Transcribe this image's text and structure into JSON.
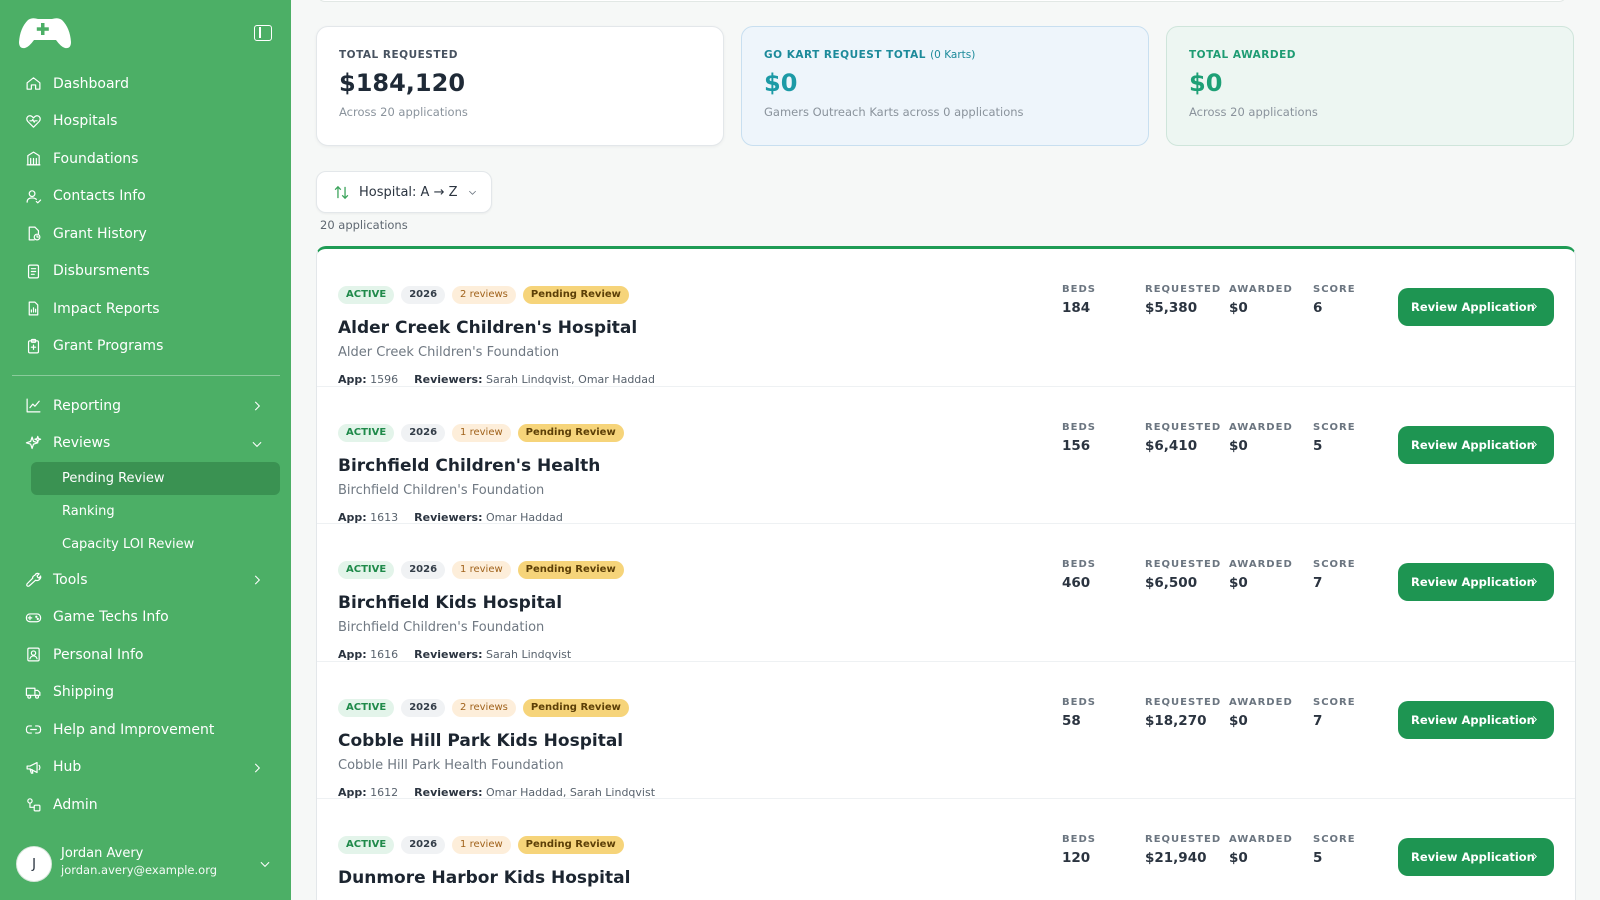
{
  "sidebar": {
    "nav": [
      {
        "label": "Dashboard",
        "icon": "home-icon"
      },
      {
        "label": "Hospitals",
        "icon": "heart-icon"
      },
      {
        "label": "Foundations",
        "icon": "building-icon"
      },
      {
        "label": "Contacts Info",
        "icon": "contact-icon"
      },
      {
        "label": "Grant History",
        "icon": "file-history-icon"
      },
      {
        "label": "Disbursments",
        "icon": "document-icon"
      },
      {
        "label": "Impact Reports",
        "icon": "report-icon"
      },
      {
        "label": "Grant Programs",
        "icon": "clipboard-icon"
      }
    ],
    "reporting_label": "Reporting",
    "reviews_label": "Reviews",
    "reviews_sub": [
      "Pending Review",
      "Ranking",
      "Capacity LOI Review"
    ],
    "tools_label": "Tools",
    "nav2": [
      {
        "label": "Game Techs Info",
        "icon": "gamepad-icon"
      },
      {
        "label": "Personal Info",
        "icon": "user-card-icon"
      },
      {
        "label": "Shipping",
        "icon": "truck-icon"
      },
      {
        "label": "Help and Improvement",
        "icon": "link-icon"
      }
    ],
    "hub_label": "Hub",
    "admin_label": "Admin",
    "user": {
      "initial": "J",
      "name": "Jordan Avery",
      "email": "jordan.avery@example.org"
    }
  },
  "stats": {
    "requested": {
      "label": "TOTAL REQUESTED",
      "value": "$184,120",
      "note": "Across 20 applications"
    },
    "gokart": {
      "label": "GO KART REQUEST TOTAL",
      "sub": "(0 Karts)",
      "value": "$0",
      "note": "Gamers Outreach Karts across 0 applications"
    },
    "awarded": {
      "label": "TOTAL AWARDED",
      "value": "$0",
      "note": "Across 20 applications"
    }
  },
  "sort": {
    "label": "Hospital: A → Z"
  },
  "count_label": "20 applications",
  "columns": {
    "beds": "BEDS",
    "requested": "REQUESTED",
    "awarded": "AWARDED",
    "score": "SCORE"
  },
  "review_button": "Review Application",
  "meta_labels": {
    "app": "App:",
    "reviewers": "Reviewers:"
  },
  "applications": [
    {
      "status": "ACTIVE",
      "year": "2026",
      "reviews": "2 reviews",
      "stage": "Pending Review",
      "name": "Alder Creek Children's Hospital",
      "foundation": "Alder Creek Children's Foundation",
      "app": "1596",
      "reviewers": "Sarah Lindqvist, Omar Haddad",
      "beds": "184",
      "requested": "$5,380",
      "awarded": "$0",
      "score": "6"
    },
    {
      "status": "ACTIVE",
      "year": "2026",
      "reviews": "1 review",
      "stage": "Pending Review",
      "name": "Birchfield Children's Health",
      "foundation": "Birchfield Children's Foundation",
      "app": "1613",
      "reviewers": "Omar Haddad",
      "beds": "156",
      "requested": "$6,410",
      "awarded": "$0",
      "score": "5"
    },
    {
      "status": "ACTIVE",
      "year": "2026",
      "reviews": "1 review",
      "stage": "Pending Review",
      "name": "Birchfield Kids Hospital",
      "foundation": "Birchfield Children's Foundation",
      "app": "1616",
      "reviewers": "Sarah Lindqvist",
      "beds": "460",
      "requested": "$6,500",
      "awarded": "$0",
      "score": "7"
    },
    {
      "status": "ACTIVE",
      "year": "2026",
      "reviews": "2 reviews",
      "stage": "Pending Review",
      "name": "Cobble Hill Park Kids Hospital",
      "foundation": "Cobble Hill Park Health Foundation",
      "app": "1612",
      "reviewers": "Omar Haddad, Sarah Lindqvist",
      "beds": "58",
      "requested": "$18,270",
      "awarded": "$0",
      "score": "7"
    },
    {
      "status": "ACTIVE",
      "year": "2026",
      "reviews": "1 review",
      "stage": "Pending Review",
      "name": "Dunmore Harbor Kids Hospital",
      "foundation": "",
      "app": "",
      "reviewers": "",
      "beds": "120",
      "requested": "$21,940",
      "awarded": "$0",
      "score": "5"
    }
  ]
}
